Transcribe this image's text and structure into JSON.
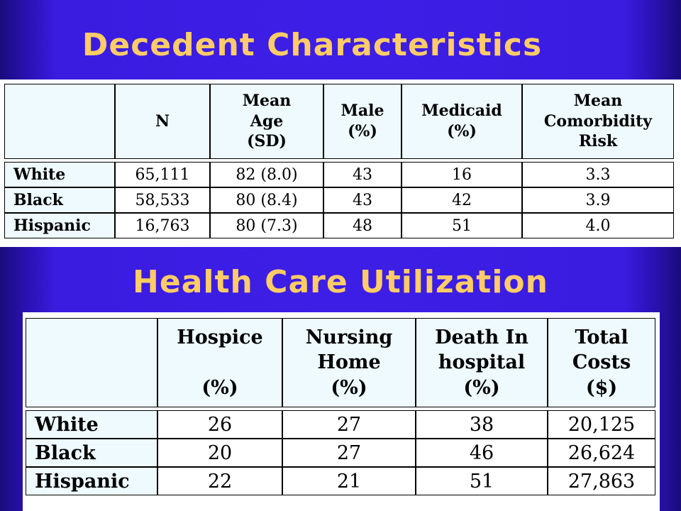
{
  "slide": {
    "title_top": "Decedent Characteristics",
    "title_bottom": "Health Care Utilization"
  },
  "table1": {
    "headers": [
      [
        ""
      ],
      [
        "N"
      ],
      [
        "Mean",
        "Age",
        "(SD)"
      ],
      [
        "Male",
        "(%)"
      ],
      [
        "Medicaid",
        "(%)"
      ],
      [
        "Mean",
        "Comorbidity",
        "Risk"
      ]
    ],
    "rows": [
      {
        "label": "White",
        "values": [
          "65,111",
          "82 (8.0)",
          "43",
          "16",
          "3.3"
        ]
      },
      {
        "label": "Black",
        "values": [
          "58,533",
          "80 (8.4)",
          "43",
          "42",
          "3.9"
        ]
      },
      {
        "label": "Hispanic",
        "values": [
          "16,763",
          "80 (7.3)",
          "48",
          "51",
          "4.0"
        ]
      }
    ]
  },
  "table2": {
    "headers": [
      [
        ""
      ],
      [
        "Hospice",
        "",
        "(%)"
      ],
      [
        "Nursing",
        "Home",
        "(%)"
      ],
      [
        "Death In",
        "hospital",
        "(%)"
      ],
      [
        "Total",
        "Costs",
        "($)"
      ]
    ],
    "rows": [
      {
        "label": "White",
        "values": [
          "26",
          "27",
          "38",
          "20,125"
        ]
      },
      {
        "label": "Black",
        "values": [
          "20",
          "27",
          "46",
          "26,624"
        ]
      },
      {
        "label": "Hispanic",
        "values": [
          "22",
          "21",
          "51",
          "27,863"
        ]
      }
    ]
  }
}
